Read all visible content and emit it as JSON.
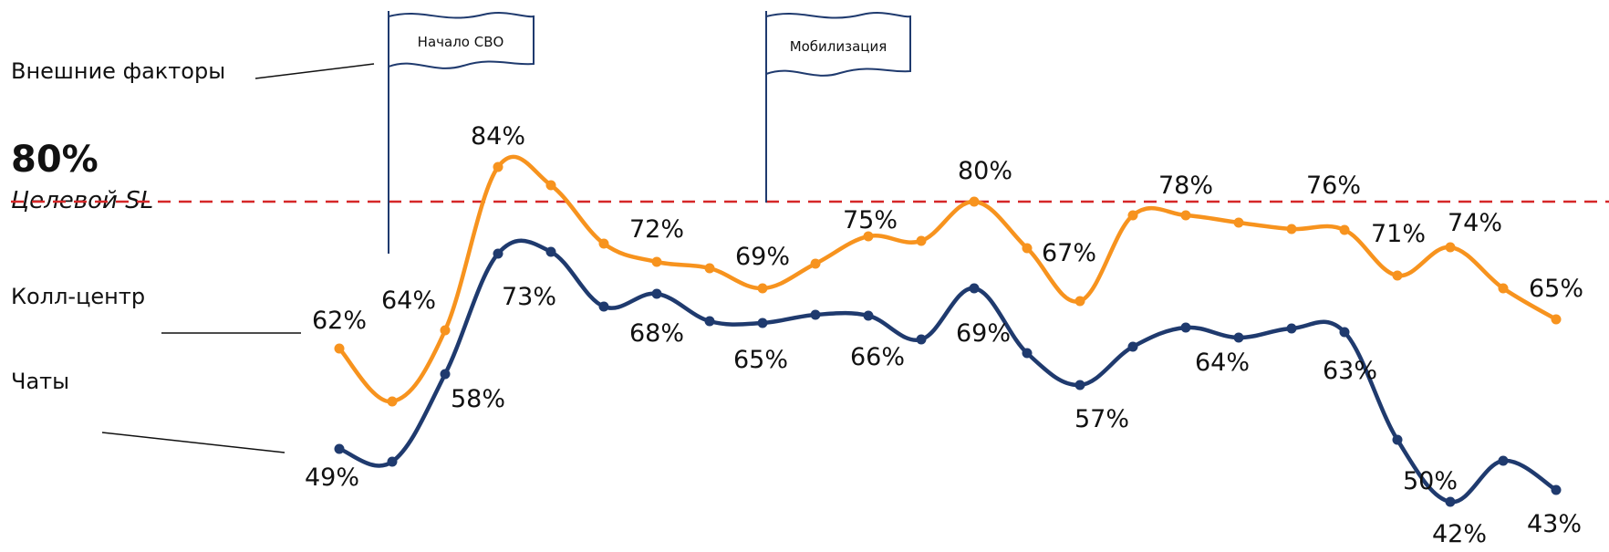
{
  "annotations": {
    "external_factors": "Внешние факторы",
    "target_value": "80%",
    "target_label": "Целевой SL",
    "callcenter_label": "Колл-центр",
    "chats_label": "Чаты",
    "events": [
      "Начало СВО",
      "Мобилизация"
    ]
  },
  "chart_data": {
    "type": "line",
    "target": 80,
    "series": [
      {
        "name": "Колл-центр",
        "color": "#F7931E",
        "values": [
          62,
          64,
          84,
          72,
          69,
          75,
          80,
          67,
          78,
          76,
          71,
          74,
          65
        ],
        "value_labels": [
          "62%",
          "64%",
          "84%",
          "72%",
          "69%",
          "75%",
          "80%",
          "67%",
          "78%",
          "76%",
          "71%",
          "74%",
          "65%"
        ]
      },
      {
        "name": "Чаты",
        "color": "#1F3A6E",
        "values": [
          49,
          58,
          73,
          68,
          65,
          66,
          69,
          57,
          64,
          63,
          50,
          42,
          43
        ],
        "value_labels": [
          "49%",
          "58%",
          "73%",
          "68%",
          "65%",
          "66%",
          "69%",
          "57%",
          "64%",
          "63%",
          "50%",
          "42%",
          "43%"
        ]
      }
    ]
  }
}
